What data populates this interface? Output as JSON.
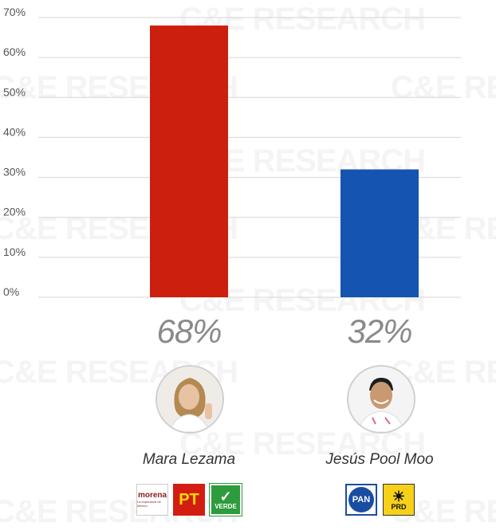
{
  "chart_data": {
    "type": "bar",
    "categories": [
      "Mara Lezama",
      "Jesús Pool Moo"
    ],
    "values": [
      68,
      32
    ],
    "ylim": [
      0,
      70
    ],
    "y_ticks": [
      0,
      10,
      20,
      30,
      40,
      50,
      60,
      70
    ],
    "y_tick_labels": [
      "0%",
      "10%",
      "20%",
      "30%",
      "40%",
      "50%",
      "60%",
      "70%"
    ],
    "value_labels": [
      "68%",
      "32%"
    ],
    "colors": [
      "#cc1f0e",
      "#1554b0"
    ],
    "grid": true,
    "legend": "none"
  },
  "watermark": {
    "text": "C&E RESEARCH"
  },
  "candidates": [
    {
      "name": "Mara Lezama",
      "photo_icon": "woman-portrait-icon",
      "party_logos": [
        {
          "icon": "morena-logo",
          "text": "morena",
          "subtext": "La esperanza de México"
        },
        {
          "icon": "pt-logo",
          "text": "PT"
        },
        {
          "icon": "verde-logo",
          "text": "VERDE"
        }
      ]
    },
    {
      "name": "Jesús Pool Moo",
      "photo_icon": "man-portrait-icon",
      "party_logos": [
        {
          "icon": "pan-logo",
          "text": "PAN"
        },
        {
          "icon": "prd-logo",
          "text": "PRD"
        }
      ]
    }
  ]
}
